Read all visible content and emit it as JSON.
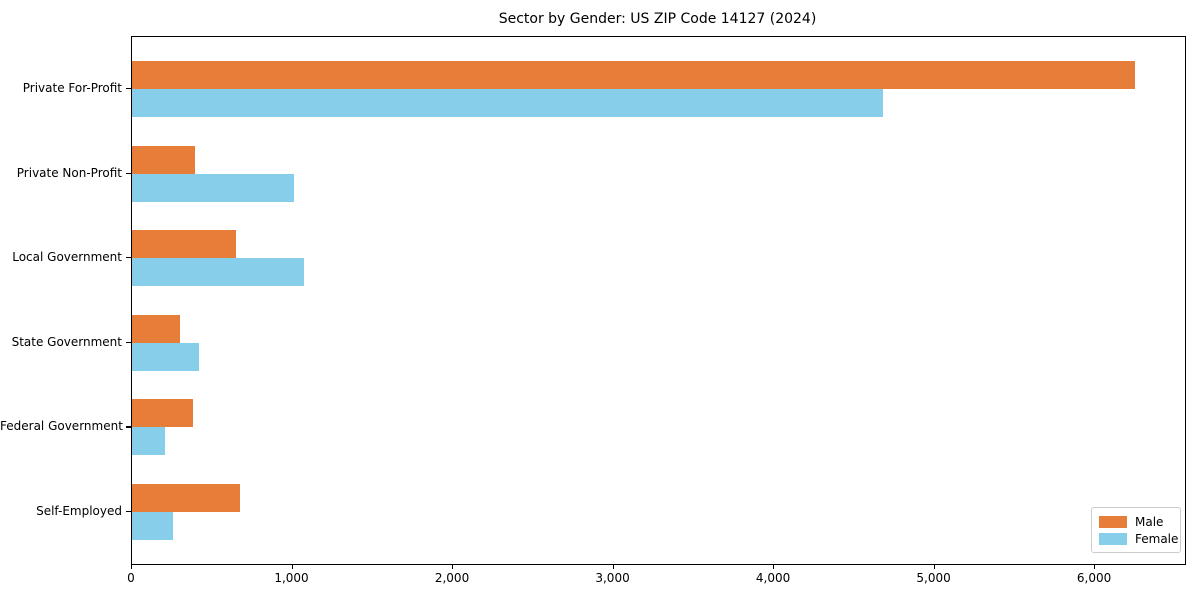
{
  "chart_data": {
    "type": "bar",
    "orientation": "horizontal",
    "title": "Sector by Gender: US ZIP Code 14127 (2024)",
    "categories": [
      "Private For-Profit",
      "Private Non-Profit",
      "Local Government",
      "State Government",
      "Federal Government",
      "Self-Employed"
    ],
    "series": [
      {
        "name": "Male",
        "color": "#e67e3a",
        "values": [
          6250,
          395,
          650,
          300,
          380,
          670
        ]
      },
      {
        "name": "Female",
        "color": "#87ceeb",
        "values": [
          4680,
          1010,
          1070,
          415,
          205,
          255
        ]
      }
    ],
    "xlabel": "",
    "ylabel": "",
    "xlim": [
      0,
      6560
    ],
    "x_ticks": [
      0,
      1000,
      2000,
      3000,
      4000,
      5000,
      6000
    ],
    "x_tick_labels": [
      "0",
      "1,000",
      "2,000",
      "3,000",
      "4,000",
      "5,000",
      "6,000"
    ],
    "grid": false,
    "legend_position": "lower right",
    "colors": {
      "male": "#e67e3a",
      "female": "#87ceeb",
      "spine": "#000000",
      "background": "#ffffff",
      "legend_border": "#cccccc"
    }
  }
}
